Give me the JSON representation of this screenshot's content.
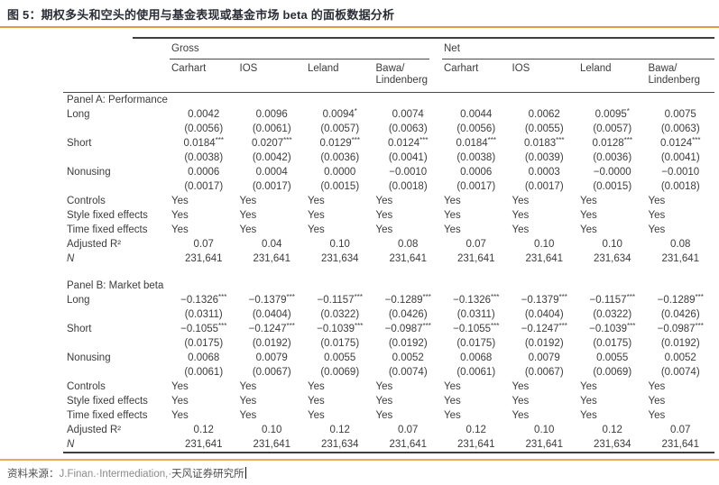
{
  "header": {
    "title": "图 5：期权多头和空头的使用与基金表现或基金市场 beta 的面板数据分析"
  },
  "table": {
    "groups": [
      {
        "label": "Gross",
        "span": 4
      },
      {
        "label": "Net",
        "span": 4
      }
    ],
    "columns": [
      "Carhart",
      "IOS",
      "Leland",
      "Bawa/\nLindenberg",
      "Carhart",
      "IOS",
      "Leland",
      "Bawa/\nLindenberg"
    ],
    "panels": [
      {
        "title": "Panel A: Performance",
        "rows": [
          {
            "label": "Long",
            "cells": [
              "0.0042",
              "0.0096",
              "0.0094*",
              "0.0074",
              "0.0044",
              "0.0062",
              "0.0095*",
              "0.0075"
            ]
          },
          {
            "label": "",
            "cells": [
              "(0.0056)",
              "(0.0061)",
              "(0.0057)",
              "(0.0063)",
              "(0.0056)",
              "(0.0055)",
              "(0.0057)",
              "(0.0063)"
            ]
          },
          {
            "label": "Short",
            "cells": [
              "0.0184***",
              "0.0207***",
              "0.0129***",
              "0.0124***",
              "0.0184***",
              "0.0183***",
              "0.0128***",
              "0.0124***"
            ]
          },
          {
            "label": "",
            "cells": [
              "(0.0038)",
              "(0.0042)",
              "(0.0036)",
              "(0.0041)",
              "(0.0038)",
              "(0.0039)",
              "(0.0036)",
              "(0.0041)"
            ]
          },
          {
            "label": "Nonusing",
            "cells": [
              "0.0006",
              "0.0004",
              "0.0000",
              "−0.0010",
              "0.0006",
              "0.0003",
              "−0.0000",
              "−0.0010"
            ]
          },
          {
            "label": "",
            "cells": [
              "(0.0017)",
              "(0.0017)",
              "(0.0015)",
              "(0.0018)",
              "(0.0017)",
              "(0.0017)",
              "(0.0015)",
              "(0.0018)"
            ]
          },
          {
            "label": "Controls",
            "cells": [
              "Yes",
              "Yes",
              "Yes",
              "Yes",
              "Yes",
              "Yes",
              "Yes",
              "Yes"
            ]
          },
          {
            "label": "Style fixed effects",
            "cells": [
              "Yes",
              "Yes",
              "Yes",
              "Yes",
              "Yes",
              "Yes",
              "Yes",
              "Yes"
            ]
          },
          {
            "label": "Time fixed effects",
            "cells": [
              "Yes",
              "Yes",
              "Yes",
              "Yes",
              "Yes",
              "Yes",
              "Yes",
              "Yes"
            ]
          },
          {
            "label": "Adjusted R²",
            "cells": [
              "0.07",
              "0.04",
              "0.10",
              "0.08",
              "0.07",
              "0.10",
              "0.10",
              "0.08"
            ]
          },
          {
            "label": "N",
            "cells": [
              "231,641",
              "231,641",
              "231,634",
              "231,641",
              "231,641",
              "231,641",
              "231,634",
              "231,641"
            ]
          }
        ]
      },
      {
        "title": "Panel B: Market beta",
        "rows": [
          {
            "label": "Long",
            "cells": [
              "−0.1326***",
              "−0.1379***",
              "−0.1157***",
              "−0.1289***",
              "−0.1326***",
              "−0.1379***",
              "−0.1157***",
              "−0.1289***"
            ]
          },
          {
            "label": "",
            "cells": [
              "(0.0311)",
              "(0.0404)",
              "(0.0322)",
              "(0.0426)",
              "(0.0311)",
              "(0.0404)",
              "(0.0322)",
              "(0.0426)"
            ]
          },
          {
            "label": "Short",
            "cells": [
              "−0.1055***",
              "−0.1247***",
              "−0.1039***",
              "−0.0987***",
              "−0.1055***",
              "−0.1247***",
              "−0.1039***",
              "−0.0987***"
            ]
          },
          {
            "label": "",
            "cells": [
              "(0.0175)",
              "(0.0192)",
              "(0.0175)",
              "(0.0192)",
              "(0.0175)",
              "(0.0192)",
              "(0.0175)",
              "(0.0192)"
            ]
          },
          {
            "label": "Nonusing",
            "cells": [
              "0.0068",
              "0.0079",
              "0.0055",
              "0.0052",
              "0.0068",
              "0.0079",
              "0.0055",
              "0.0052"
            ]
          },
          {
            "label": "",
            "cells": [
              "(0.0061)",
              "(0.0067)",
              "(0.0069)",
              "(0.0074)",
              "(0.0061)",
              "(0.0067)",
              "(0.0069)",
              "(0.0074)"
            ]
          },
          {
            "label": "Controls",
            "cells": [
              "Yes",
              "Yes",
              "Yes",
              "Yes",
              "Yes",
              "Yes",
              "Yes",
              "Yes"
            ]
          },
          {
            "label": "Style fixed effects",
            "cells": [
              "Yes",
              "Yes",
              "Yes",
              "Yes",
              "Yes",
              "Yes",
              "Yes",
              "Yes"
            ]
          },
          {
            "label": "Time fixed effects",
            "cells": [
              "Yes",
              "Yes",
              "Yes",
              "Yes",
              "Yes",
              "Yes",
              "Yes",
              "Yes"
            ]
          },
          {
            "label": "Adjusted R²",
            "cells": [
              "0.12",
              "0.10",
              "0.12",
              "0.07",
              "0.12",
              "0.10",
              "0.12",
              "0.07"
            ]
          },
          {
            "label": "N",
            "cells": [
              "231,641",
              "231,641",
              "231,634",
              "231,641",
              "231,641",
              "231,641",
              "231,634",
              "231,641"
            ]
          }
        ]
      }
    ]
  },
  "footer": {
    "source_label": "资料来源：",
    "source_journal": "J.Finan.·Intermediation,·",
    "source_institution": "天风证券研究所"
  },
  "colors": {
    "accent_orange": "#E49A3F",
    "rule_dark": "#3f3f3f",
    "text": "#3c3c3c"
  }
}
